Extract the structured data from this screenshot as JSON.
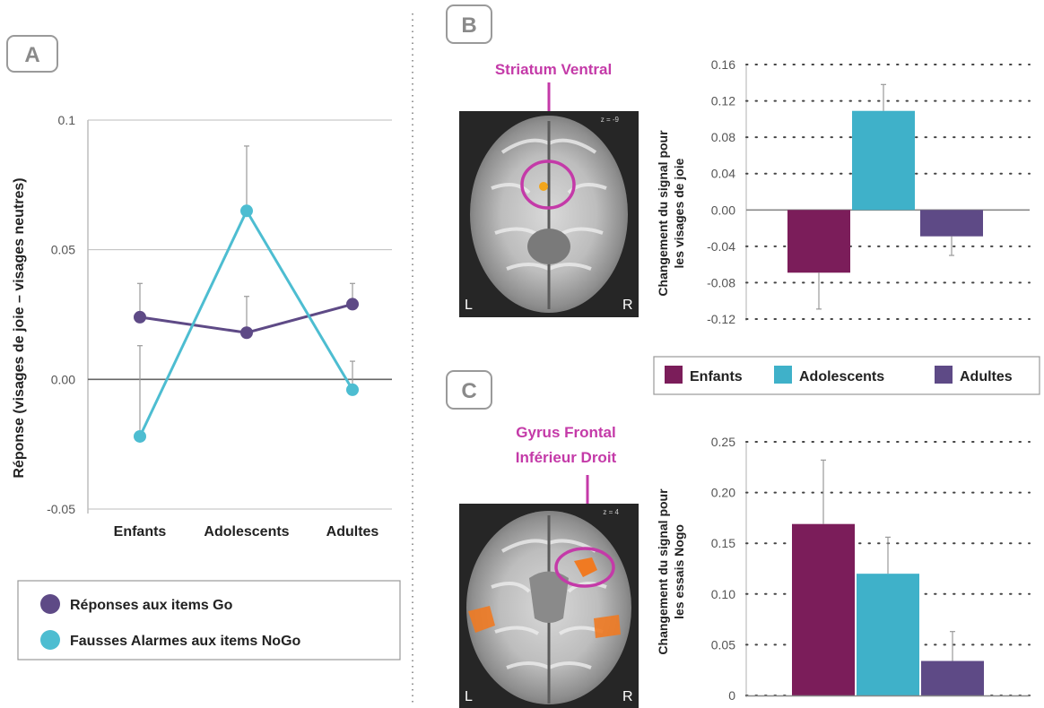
{
  "colors": {
    "enfants": "#7b1d5a",
    "adolescents": "#3fb1c9",
    "adultes": "#5e4a86",
    "go": "#5e4a86",
    "nogo": "#4dbdd1",
    "region": "#c43aa8",
    "grid": "#444444",
    "frame": "#bdbdbd"
  },
  "panel_a": {
    "letter": "A"
  },
  "panel_b": {
    "letter": "B",
    "region_label": "Striatum Ventral",
    "z_label": "z = -9",
    "left": "L",
    "right": "R"
  },
  "panel_c": {
    "letter": "C",
    "region_label_1": "Gyrus Frontal",
    "region_label_2": "Inférieur Droit",
    "z_label": "z = 4",
    "left": "L",
    "right": "R"
  },
  "legend_a": {
    "items": [
      "Réponses aux items Go",
      "Fausses Alarmes aux items NoGo"
    ]
  },
  "legend_bc": {
    "items": [
      "Enfants",
      "Adolescents",
      "Adultes"
    ]
  },
  "chart_data": [
    {
      "type": "line",
      "panel": "A",
      "categories": [
        "Enfants",
        "Adolescents",
        "Adultes"
      ],
      "ylabel": "Réponse (visages de joie – visages neutres)",
      "xlabel": "",
      "ylim": [
        -0.05,
        0.1
      ],
      "yticks": [
        "0.1",
        "0.05",
        "0.00",
        "-0.05"
      ],
      "grid": true,
      "legend_position": "bottom",
      "series": [
        {
          "name": "Réponses aux items Go",
          "values": [
            0.024,
            0.018,
            0.029
          ],
          "errors": [
            0.013,
            0.014,
            0.008
          ]
        },
        {
          "name": "Fausses Alarmes aux items NoGo",
          "values": [
            -0.022,
            0.065,
            -0.004
          ],
          "errors": [
            0.035,
            0.025,
            0.011
          ]
        }
      ]
    },
    {
      "type": "bar",
      "panel": "B",
      "categories": [
        "Enfants",
        "Adolescents",
        "Adultes"
      ],
      "values": [
        -0.069,
        0.109,
        -0.029
      ],
      "errors": [
        0.04,
        0.029,
        0.021
      ],
      "ylabel_lines": [
        "Changement du signal pour",
        "les visages de joie"
      ],
      "ylim": [
        -0.12,
        0.16
      ],
      "yticks": [
        "0.16",
        "0.12",
        "0.08",
        "0.04",
        "0.00",
        "-0.04",
        "-0.08",
        "-0.12"
      ],
      "grid": true,
      "legend_position": "bottom"
    },
    {
      "type": "bar",
      "panel": "C",
      "categories": [
        "Enfants",
        "Adolescents",
        "Adultes"
      ],
      "values": [
        0.169,
        0.12,
        0.034
      ],
      "errors": [
        0.063,
        0.036,
        0.029
      ],
      "ylabel_lines": [
        "Changement du signal pour",
        "les essais Nogo"
      ],
      "ylim": [
        0,
        0.25
      ],
      "yticks": [
        "0.25",
        "0.20",
        "0.15",
        "0.10",
        "0.05",
        "0"
      ],
      "grid": true
    }
  ]
}
